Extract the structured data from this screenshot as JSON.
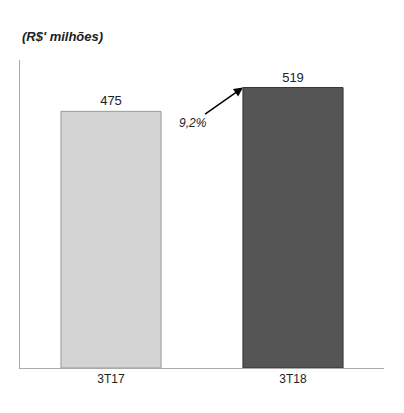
{
  "chart_data": {
    "type": "bar",
    "y_label": "(R$' milhões)",
    "categories": [
      "3T17",
      "3T18"
    ],
    "values": [
      475,
      519
    ],
    "colors": [
      "#d4d4d4",
      "#555555"
    ],
    "data_labels": true,
    "annotations": [
      "9,2%"
    ],
    "ylim": [
      0,
      570
    ],
    "grid": false,
    "tick_labels": "x"
  }
}
